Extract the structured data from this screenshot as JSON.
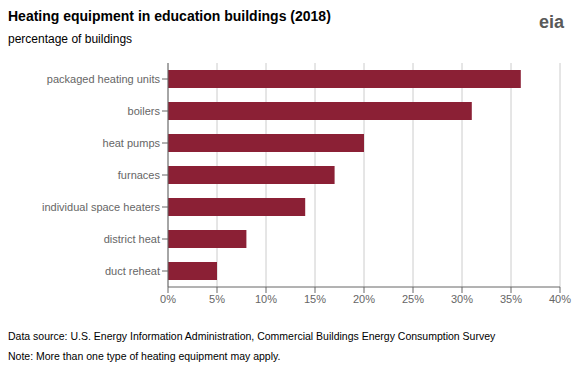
{
  "chart_data": {
    "type": "bar",
    "orientation": "horizontal",
    "title": "Heating equipment in education buildings (2018)",
    "subtitle": "percentage of buildings",
    "categories": [
      "packaged heating units",
      "boilers",
      "heat pumps",
      "furnaces",
      "individual space heaters",
      "district heat",
      "duct reheat"
    ],
    "values": [
      36,
      31,
      20,
      17,
      14,
      8,
      5
    ],
    "color": "#8B2035",
    "xlim": [
      0,
      40
    ],
    "xticks": [
      {
        "value": 0,
        "label": "0%"
      },
      {
        "value": 5,
        "label": "5%"
      },
      {
        "value": 10,
        "label": "10%"
      },
      {
        "value": 15,
        "label": "15%"
      },
      {
        "value": 20,
        "label": "20%"
      },
      {
        "value": 25,
        "label": "25%"
      },
      {
        "value": 30,
        "label": "30%"
      },
      {
        "value": 35,
        "label": "35%"
      },
      {
        "value": 40,
        "label": "40%"
      }
    ],
    "grid": true,
    "annotations": [
      "Data source: U.S. Energy Information Administration, Commercial Buildings Energy Consumption Survey",
      "Note: More than one type of heating equipment may apply.",
      "eia"
    ]
  }
}
